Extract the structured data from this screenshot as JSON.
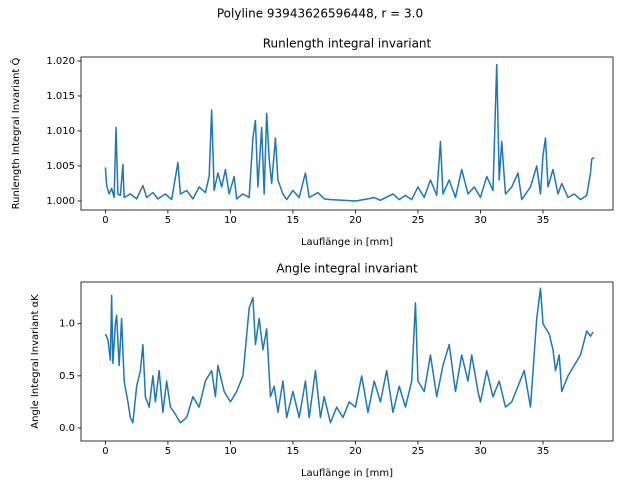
{
  "figure_title": "Polyline 93943626596448, r = 3.0",
  "chart_data": [
    {
      "type": "line",
      "title": "Runlength integral invariant",
      "x_label": "Lauflänge in [mm]",
      "y_label": "Runlength Integral Invariant Q̂",
      "color": "#1f77b4",
      "x": [
        0,
        0.1,
        0.3,
        0.5,
        0.7,
        0.85,
        1.0,
        1.2,
        1.4,
        1.5,
        2.0,
        2.5,
        3.0,
        3.3,
        3.8,
        4.2,
        4.8,
        5.3,
        5.8,
        6.0,
        6.5,
        7.0,
        7.5,
        8.0,
        8.3,
        8.5,
        8.7,
        9.0,
        9.3,
        9.6,
        9.9,
        10.3,
        10.5,
        11.0,
        11.5,
        11.8,
        12.0,
        12.2,
        12.5,
        12.7,
        12.9,
        13.1,
        13.3,
        13.6,
        13.8,
        14.2,
        14.5,
        15.0,
        15.5,
        16.0,
        16.3,
        17.0,
        17.5,
        18.0,
        19.0,
        20.0,
        21.0,
        21.5,
        22.0,
        23.0,
        23.5,
        24.0,
        24.5,
        25.0,
        25.5,
        26.0,
        26.5,
        26.8,
        27.0,
        27.5,
        28.0,
        28.5,
        29.0,
        29.5,
        30.0,
        30.5,
        31.0,
        31.3,
        31.5,
        31.7,
        32.0,
        32.5,
        33.0,
        33.3,
        34.0,
        34.5,
        34.8,
        35.0,
        35.2,
        35.4,
        35.8,
        36.2,
        36.5,
        37.0,
        37.5,
        38.0,
        38.5,
        38.8,
        38.9,
        39.1
      ],
      "values": [
        1.0048,
        1.0022,
        1.001,
        1.0018,
        1.0005,
        1.0105,
        1.001,
        1.0008,
        1.0052,
        1.0005,
        1.001,
        1.0003,
        1.0022,
        1.0005,
        1.0012,
        1.0003,
        1.001,
        1.0002,
        1.0055,
        1.001,
        1.0015,
        1.0003,
        1.002,
        1.0012,
        1.0035,
        1.013,
        1.0015,
        1.004,
        1.002,
        1.0045,
        1.001,
        1.0035,
        1.0003,
        1.001,
        1.0005,
        1.009,
        1.0115,
        1.002,
        1.0105,
        1.001,
        1.0125,
        1.006,
        1.0025,
        1.009,
        1.003,
        1.001,
        1.0002,
        1.0015,
        1.0005,
        1.004,
        1.0005,
        1.0012,
        1.0003,
        1.0002,
        1.0001,
        1.0,
        1.0003,
        1.0005,
        1.0001,
        1.001,
        1.0002,
        1.0008,
        1.0002,
        1.002,
        1.0005,
        1.003,
        1.0008,
        1.0085,
        1.001,
        1.003,
        1.0005,
        1.0045,
        1.001,
        1.002,
        1.0005,
        1.0035,
        1.0015,
        1.0195,
        1.003,
        1.0085,
        1.001,
        1.002,
        1.004,
        1.0002,
        1.002,
        1.005,
        1.001,
        1.0065,
        1.009,
        1.002,
        1.0045,
        1.001,
        1.0025,
        1.0005,
        1.001,
        1.0002,
        1.0008,
        1.004,
        1.006,
        1.0062
      ],
      "xlim": [
        -1.95,
        40.6
      ],
      "xticks": [
        0,
        5,
        10,
        15,
        20,
        25,
        30,
        35
      ],
      "ylim": [
        0.99871,
        1.02057
      ],
      "yticks": [
        {
          "value": 1.0,
          "label": "1.000"
        },
        {
          "value": 1.005,
          "label": "1.005"
        },
        {
          "value": 1.01,
          "label": "1.010"
        },
        {
          "value": 1.015,
          "label": "1.015"
        },
        {
          "value": 1.02,
          "label": "1.020"
        }
      ]
    },
    {
      "type": "line",
      "title": "Angle integral invariant",
      "x_label": "Lauflänge in [mm]",
      "y_label": "Angle Integral Invariant αK",
      "color": "#1f77b4",
      "x": [
        0,
        0.2,
        0.4,
        0.5,
        0.6,
        0.8,
        0.9,
        1.1,
        1.3,
        1.5,
        1.8,
        2.0,
        2.2,
        2.5,
        2.8,
        3.0,
        3.2,
        3.5,
        3.8,
        4.0,
        4.3,
        4.6,
        4.9,
        5.2,
        5.5,
        6.0,
        6.5,
        7.0,
        7.5,
        8.0,
        8.5,
        8.8,
        9.0,
        9.5,
        10.0,
        10.5,
        11.0,
        11.5,
        11.8,
        12.0,
        12.3,
        12.6,
        12.9,
        13.2,
        13.5,
        13.8,
        14.2,
        14.5,
        15.0,
        15.5,
        16.0,
        16.3,
        16.8,
        17.2,
        17.5,
        18.0,
        18.5,
        19.0,
        19.5,
        20.0,
        20.5,
        21.0,
        21.5,
        22.0,
        22.5,
        23.0,
        23.5,
        24.0,
        24.5,
        24.8,
        25.0,
        25.5,
        26.0,
        26.5,
        27.0,
        27.5,
        28.0,
        28.5,
        29.0,
        29.3,
        29.8,
        30.0,
        30.5,
        31.0,
        31.5,
        32.0,
        32.5,
        33.0,
        33.5,
        34.0,
        34.5,
        34.8,
        35.0,
        35.5,
        35.8,
        36.0,
        36.3,
        36.5,
        37.0,
        37.5,
        38.0,
        38.5,
        38.8,
        39.0
      ],
      "values": [
        0.9,
        0.85,
        0.65,
        1.27,
        0.62,
        1.0,
        1.08,
        0.6,
        1.05,
        0.45,
        0.25,
        0.1,
        0.05,
        0.4,
        0.55,
        0.8,
        0.3,
        0.2,
        0.5,
        0.25,
        0.55,
        0.15,
        0.45,
        0.2,
        0.15,
        0.05,
        0.1,
        0.3,
        0.2,
        0.45,
        0.55,
        0.3,
        0.6,
        0.35,
        0.25,
        0.35,
        0.5,
        1.15,
        1.25,
        0.8,
        1.05,
        0.75,
        0.95,
        0.3,
        0.4,
        0.15,
        0.45,
        0.1,
        0.35,
        0.1,
        0.45,
        0.1,
        0.55,
        0.1,
        0.3,
        0.05,
        0.2,
        0.1,
        0.25,
        0.2,
        0.5,
        0.15,
        0.45,
        0.25,
        0.55,
        0.15,
        0.4,
        0.2,
        0.45,
        1.2,
        0.45,
        0.35,
        0.7,
        0.3,
        0.6,
        0.8,
        0.35,
        0.7,
        0.45,
        0.7,
        0.35,
        0.25,
        0.55,
        0.3,
        0.45,
        0.2,
        0.25,
        0.4,
        0.55,
        0.2,
        1.05,
        1.34,
        1.0,
        0.9,
        0.75,
        0.55,
        0.7,
        0.35,
        0.5,
        0.6,
        0.7,
        0.93,
        0.88,
        0.92
      ],
      "xlim": [
        -1.95,
        40.6
      ],
      "xticks": [
        0,
        5,
        10,
        15,
        20,
        25,
        30,
        35
      ],
      "ylim": [
        -0.125,
        1.4
      ],
      "yticks": [
        {
          "value": 0,
          "label": "0.0"
        },
        {
          "value": 0.5,
          "label": "0.5"
        },
        {
          "value": 1,
          "label": "1.0"
        }
      ]
    }
  ]
}
